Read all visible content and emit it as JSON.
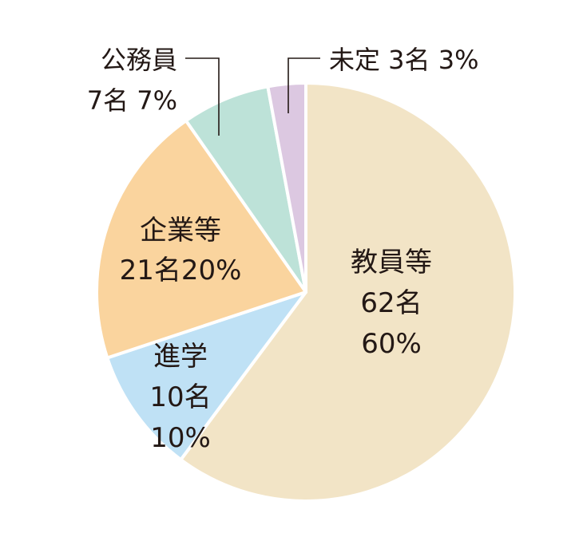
{
  "chart_data": {
    "type": "pie",
    "slices": [
      {
        "name": "教員等",
        "count_label": "62名",
        "percent_label": "60%",
        "value": 62,
        "color": "#f2e4c6"
      },
      {
        "name": "進学",
        "count_label": "10名",
        "percent_label": "10%",
        "value": 10,
        "color": "#bfe1f5"
      },
      {
        "name": "企業等",
        "count_label": "21名",
        "percent_label": "20%",
        "value": 21,
        "color": "#fad49e"
      },
      {
        "name": "公務員",
        "count_label": "7名",
        "percent_label": "7%",
        "value": 7,
        "color": "#bde2d8"
      },
      {
        "name": "未定",
        "count_label": "3名",
        "percent_label": "3%",
        "value": 3,
        "color": "#dcc8e1"
      }
    ],
    "outside_labels": {
      "koumuin_line1": "公務員",
      "koumuin_line2": "7名 7%",
      "mitei_line": "未定 3名 3%"
    },
    "start": "12 o'clock",
    "direction": "clockwise"
  }
}
